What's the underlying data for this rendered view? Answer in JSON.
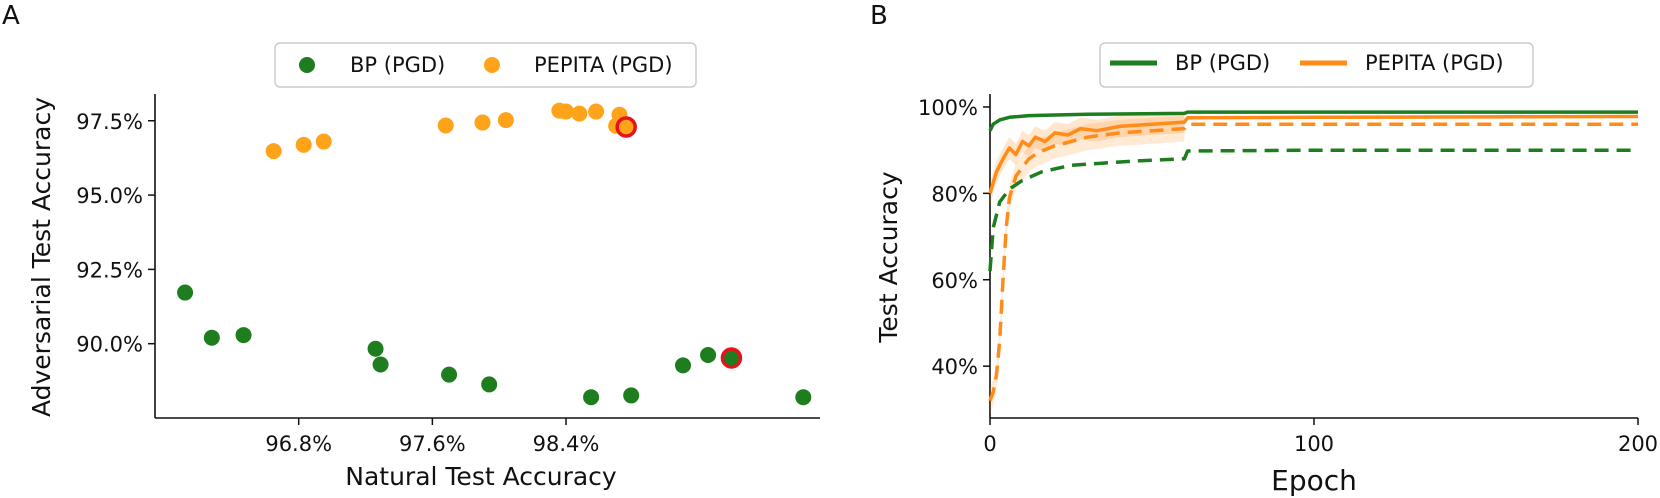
{
  "panels": [
    {
      "letter": "A",
      "legend": [
        {
          "label": "BP (PGD)",
          "color": "#1e7d1e",
          "marker": "dot"
        },
        {
          "label": "PEPITA (PGD)",
          "color": "#ffa31a",
          "marker": "dot"
        }
      ]
    },
    {
      "letter": "B",
      "legend": [
        {
          "label": "BP (PGD)",
          "color": "#1e7d1e",
          "marker": "line"
        },
        {
          "label": "PEPITA (PGD)",
          "color": "#ff8c1a",
          "marker": "line"
        }
      ]
    }
  ],
  "chart_data": [
    {
      "type": "scatter",
      "xlabel": "Natural Test Accuracy",
      "ylabel": "Adversarial Test Accuracy",
      "xlim": [
        95.94,
        99.92
      ],
      "ylim": [
        87.5,
        98.4
      ],
      "xticks": [
        96.8,
        97.6,
        98.4
      ],
      "xtick_labels": [
        "96.8%",
        "97.6%",
        "98.4%"
      ],
      "yticks": [
        90.0,
        92.5,
        95.0,
        97.5
      ],
      "ytick_labels": [
        "90.0%",
        "92.5%",
        "95.0%",
        "97.5%"
      ],
      "grid": false,
      "legend_position": "top-center",
      "highlight_color": "#e8121a",
      "series": [
        {
          "name": "BP (PGD)",
          "color": "#1e7d1e",
          "points": [
            [
              96.12,
              91.72
            ],
            [
              96.28,
              90.2
            ],
            [
              96.47,
              90.29
            ],
            [
              97.26,
              89.83
            ],
            [
              97.29,
              89.3
            ],
            [
              97.7,
              88.96
            ],
            [
              97.94,
              88.63
            ],
            [
              98.55,
              88.2
            ],
            [
              98.79,
              88.26
            ],
            [
              99.1,
              89.27
            ],
            [
              99.25,
              89.62
            ],
            [
              99.39,
              89.52
            ],
            [
              99.82,
              88.2
            ]
          ],
          "highlighted": [
            [
              99.39,
              89.52
            ]
          ]
        },
        {
          "name": "PEPITA (PGD)",
          "color": "#ffa31a",
          "points": [
            [
              96.65,
              96.48
            ],
            [
              96.83,
              96.69
            ],
            [
              96.95,
              96.8
            ],
            [
              97.68,
              97.34
            ],
            [
              97.9,
              97.44
            ],
            [
              98.04,
              97.52
            ],
            [
              98.36,
              97.84
            ],
            [
              98.4,
              97.81
            ],
            [
              98.48,
              97.74
            ],
            [
              98.58,
              97.81
            ],
            [
              98.72,
              97.7
            ],
            [
              98.7,
              97.33
            ],
            [
              98.76,
              97.29
            ]
          ],
          "highlighted": [
            [
              98.76,
              97.29
            ]
          ]
        }
      ]
    },
    {
      "type": "line",
      "xlabel": "Epoch",
      "ylabel": "Test Accuracy",
      "xlim": [
        0,
        200
      ],
      "ylim": [
        28,
        103
      ],
      "xticks": [
        0,
        100,
        200
      ],
      "xtick_labels": [
        "0",
        "100",
        "200"
      ],
      "yticks": [
        40,
        60,
        80,
        100
      ],
      "ytick_labels": [
        "40%",
        "60%",
        "80%",
        "100%"
      ],
      "grid": false,
      "legend_position": "top-center",
      "line_styles": {
        "natural": "solid",
        "adversarial": "dashed"
      },
      "series": [
        {
          "name": "BP (PGD)",
          "color": "#1e7d1e",
          "natural": [
            [
              0,
              94.5
            ],
            [
              1,
              96.0
            ],
            [
              3,
              97.0
            ],
            [
              6,
              97.6
            ],
            [
              12,
              98.0
            ],
            [
              30,
              98.3
            ],
            [
              60,
              98.5
            ],
            [
              61,
              98.8
            ],
            [
              100,
              98.8
            ],
            [
              200,
              98.8
            ]
          ],
          "adversarial": [
            [
              0,
              62
            ],
            [
              1,
              72
            ],
            [
              3,
              78
            ],
            [
              6,
              81
            ],
            [
              10,
              83
            ],
            [
              16,
              85
            ],
            [
              25,
              86.5
            ],
            [
              35,
              87
            ],
            [
              45,
              87.5
            ],
            [
              60,
              88
            ],
            [
              61,
              89.8
            ],
            [
              100,
              90
            ],
            [
              200,
              90
            ]
          ]
        },
        {
          "name": "PEPITA (PGD)",
          "color": "#ff8c1a",
          "natural": [
            [
              0,
              80
            ],
            [
              2,
              85
            ],
            [
              4,
              88
            ],
            [
              6,
              90.5
            ],
            [
              8,
              89
            ],
            [
              10,
              92
            ],
            [
              12,
              91
            ],
            [
              14,
              93
            ],
            [
              17,
              92
            ],
            [
              20,
              94
            ],
            [
              24,
              93.5
            ],
            [
              28,
              95
            ],
            [
              33,
              94.5
            ],
            [
              40,
              95.5
            ],
            [
              50,
              96
            ],
            [
              60,
              96.5
            ],
            [
              61,
              97.5
            ],
            [
              100,
              97.6
            ],
            [
              200,
              97.8
            ]
          ],
          "natural_band": {
            "offset": 2.5,
            "until_epoch": 60
          },
          "adversarial": [
            [
              0,
              32
            ],
            [
              1,
              34
            ],
            [
              2,
              38
            ],
            [
              3,
              46
            ],
            [
              4,
              60
            ],
            [
              5,
              72
            ],
            [
              6,
              79
            ],
            [
              8,
              84
            ],
            [
              10,
              86
            ],
            [
              12,
              88
            ],
            [
              15,
              89.5
            ],
            [
              20,
              91
            ],
            [
              25,
              92
            ],
            [
              30,
              93
            ],
            [
              40,
              94
            ],
            [
              50,
              94.5
            ],
            [
              60,
              95
            ],
            [
              61,
              96
            ],
            [
              100,
              96
            ],
            [
              200,
              96
            ]
          ],
          "adversarial_band": {
            "offset": 3,
            "until_epoch": 60
          }
        }
      ]
    }
  ]
}
